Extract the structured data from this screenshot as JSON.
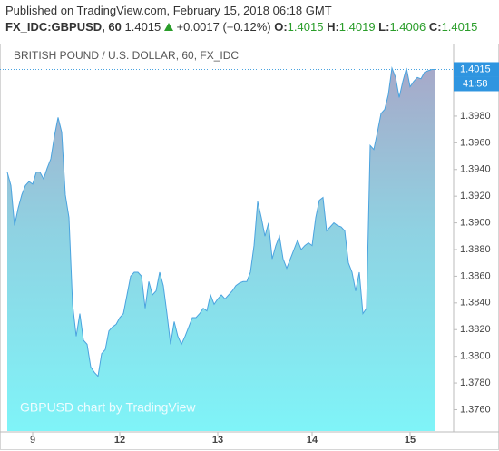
{
  "header": {
    "published": "Published on TradingView.com, February 15, 2018 06:18 GMT",
    "symbol": "FX_IDC:GBPUSD, 60",
    "last": "1.4015",
    "change": "+0.0017 (+0.12%)",
    "ohlc": [
      {
        "label": "O:",
        "value": "1.4015"
      },
      {
        "label": "H:",
        "value": "1.4019"
      },
      {
        "label": "L:",
        "value": "1.4006"
      },
      {
        "label": "C:",
        "value": "1.4015"
      }
    ]
  },
  "chart_data": {
    "type": "area",
    "title": "BRITISH POUND / U.S. DOLLAR, 60, FX_IDC",
    "watermark": "GBPUSD chart by TradingView",
    "price_label": "1.4015",
    "countdown": "41:58",
    "color": "#4aa3df",
    "values": [
      1.3938,
      1.3928,
      1.3898,
      1.3911,
      1.3921,
      1.3928,
      1.3931,
      1.3929,
      1.3938,
      1.3938,
      1.3933,
      1.3941,
      1.3948,
      1.3965,
      1.3979,
      1.3968,
      1.3921,
      1.3904,
      1.3839,
      1.3815,
      1.3832,
      1.3812,
      1.3809,
      1.3792,
      1.3788,
      1.3785,
      1.3802,
      1.3805,
      1.3819,
      1.3822,
      1.3824,
      1.3829,
      1.3832,
      1.3846,
      1.386,
      1.3863,
      1.3863,
      1.386,
      1.3836,
      1.3856,
      1.3846,
      1.3849,
      1.3863,
      1.3853,
      1.3832,
      1.3809,
      1.3826,
      1.3815,
      1.3809,
      1.3815,
      1.3822,
      1.3829,
      1.3829,
      1.3832,
      1.3836,
      1.3834,
      1.3846,
      1.3839,
      1.3843,
      1.3846,
      1.3843,
      1.3846,
      1.3849,
      1.3853,
      1.3855,
      1.3856,
      1.3856,
      1.3863,
      1.3883,
      1.3916,
      1.3904,
      1.389,
      1.39,
      1.3873,
      1.3883,
      1.389,
      1.3873,
      1.3866,
      1.3873,
      1.388,
      1.3887,
      1.388,
      1.3883,
      1.3885,
      1.3883,
      1.3904,
      1.3917,
      1.3919,
      1.3894,
      1.3897,
      1.39,
      1.3898,
      1.3897,
      1.3894,
      1.387,
      1.3863,
      1.3849,
      1.3863,
      1.3832,
      1.3836,
      1.3958,
      1.3955,
      1.3968,
      1.3982,
      1.3985,
      1.3996,
      1.4016,
      1.4009,
      1.3994,
      1.4006,
      1.4016,
      1.4002,
      1.4006,
      1.4009,
      1.4008,
      1.4013,
      1.4014,
      1.4015,
      1.4015
    ],
    "xlim": [
      0,
      118
    ],
    "xticks": [
      {
        "value": 7,
        "label": "9"
      },
      {
        "value": 31,
        "label": "12"
      },
      {
        "value": 58,
        "label": "13"
      },
      {
        "value": 84,
        "label": "14"
      },
      {
        "value": 111,
        "label": "15"
      }
    ],
    "ylim": [
      1.3744,
      1.4033
    ],
    "yticks": [
      {
        "value": 1.376,
        "label": "1.3760"
      },
      {
        "value": 1.378,
        "label": "1.3780"
      },
      {
        "value": 1.38,
        "label": "1.3800"
      },
      {
        "value": 1.382,
        "label": "1.3820"
      },
      {
        "value": 1.384,
        "label": "1.3840"
      },
      {
        "value": 1.386,
        "label": "1.3860"
      },
      {
        "value": 1.388,
        "label": "1.3880"
      },
      {
        "value": 1.39,
        "label": "1.3900"
      },
      {
        "value": 1.392,
        "label": "1.3920"
      },
      {
        "value": 1.394,
        "label": "1.3940"
      },
      {
        "value": 1.396,
        "label": "1.3960"
      },
      {
        "value": 1.398,
        "label": "1.3980"
      }
    ]
  }
}
